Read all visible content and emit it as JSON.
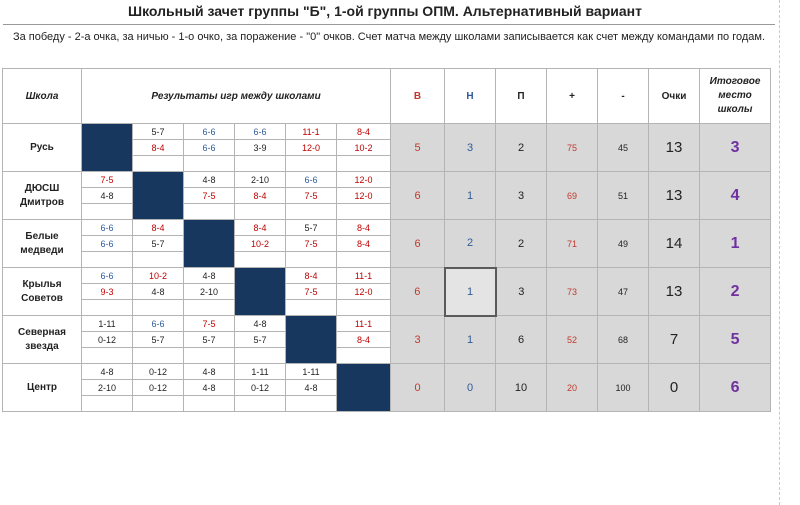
{
  "title": "Школьный зачет группы \"Б\", 1-ой группы ОПМ. Альтернативный вариант",
  "note": "За победу - 2-а очка, за ничью - 1-о очко, за поражение - \"0\" очков. Счет матча между школами записывается как счет между командами по годам.",
  "headers": {
    "school": "Школа",
    "results": "Результаты игр между школами",
    "wins": "В",
    "draws": "Н",
    "losses": "П",
    "plus": "+",
    "minus": "-",
    "points": "Очки",
    "place": "Итоговое место школы"
  },
  "rows": [
    {
      "school": "Русь",
      "scores": [
        [
          "",
          "5-7",
          "6-6",
          "6-6",
          "11-1",
          "8-4"
        ],
        [
          "",
          "8-4",
          "6-6",
          "3-9",
          "12-0",
          "10-2"
        ],
        [
          "",
          "",
          "",
          "",
          "",
          ""
        ]
      ],
      "wins": "5",
      "draws": "3",
      "losses": "2",
      "plus": "75",
      "minus": "45",
      "points": "13",
      "place": "3"
    },
    {
      "school": "ДЮСШ Дмитров",
      "scores": [
        [
          "7-5",
          "",
          "4-8",
          "2-10",
          "6-6",
          "12-0"
        ],
        [
          "4-8",
          "",
          "7-5",
          "8-4",
          "7-5",
          "12-0"
        ],
        [
          "",
          "",
          "",
          "",
          "",
          ""
        ]
      ],
      "wins": "6",
      "draws": "1",
      "losses": "3",
      "plus": "69",
      "minus": "51",
      "points": "13",
      "place": "4"
    },
    {
      "school": "Белые медведи",
      "scores": [
        [
          "6-6",
          "8-4",
          "",
          "8-4",
          "5-7",
          "8-4"
        ],
        [
          "6-6",
          "5-7",
          "",
          "10-2",
          "7-5",
          "8-4"
        ],
        [
          "",
          "",
          "",
          "",
          "",
          ""
        ]
      ],
      "wins": "6",
      "draws": "2",
      "losses": "2",
      "plus": "71",
      "minus": "49",
      "points": "14",
      "place": "1"
    },
    {
      "school": "Крылья Советов",
      "scores": [
        [
          "6-6",
          "10-2",
          "4-8",
          "",
          "8-4",
          "11-1"
        ],
        [
          "9-3",
          "4-8",
          "2-10",
          "",
          "7-5",
          "12-0"
        ],
        [
          "",
          "",
          "",
          "",
          "",
          ""
        ]
      ],
      "wins": "6",
      "draws": "1",
      "losses": "3",
      "plus": "73",
      "minus": "47",
      "points": "13",
      "place": "2"
    },
    {
      "school": "Северная звезда",
      "scores": [
        [
          "1-11",
          "6-6",
          "7-5",
          "4-8",
          "",
          "11-1"
        ],
        [
          "0-12",
          "5-7",
          "5-7",
          "5-7",
          "",
          "8-4"
        ],
        [
          "",
          "",
          "",
          "",
          "",
          ""
        ]
      ],
      "wins": "3",
      "draws": "1",
      "losses": "6",
      "plus": "52",
      "minus": "68",
      "points": "7",
      "place": "5"
    },
    {
      "school": "Центр",
      "scores": [
        [
          "4-8",
          "0-12",
          "4-8",
          "1-11",
          "1-11",
          ""
        ],
        [
          "2-10",
          "0-12",
          "4-8",
          "0-12",
          "4-8",
          ""
        ],
        [
          "",
          "",
          "",
          "",
          "",
          ""
        ]
      ],
      "wins": "0",
      "draws": "0",
      "losses": "10",
      "plus": "20",
      "minus": "100",
      "points": "0",
      "place": "6"
    }
  ],
  "colors": {
    "win": "#c00000",
    "draw": "#2e5a9c",
    "loss": "#222222",
    "diagonal": "#17375e",
    "stats_bg": "#d8d8d8",
    "place": "#7030a0"
  }
}
